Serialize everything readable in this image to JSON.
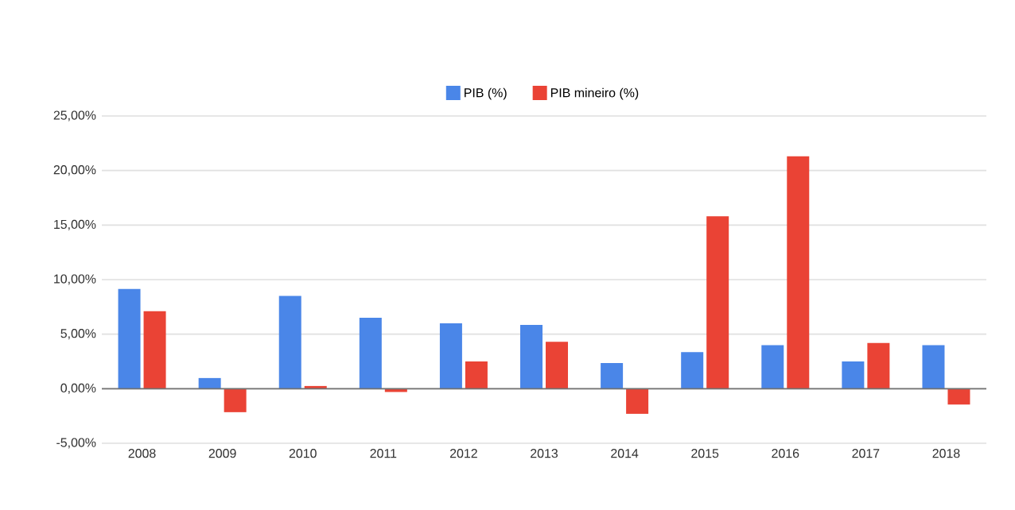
{
  "chart_data": {
    "type": "bar",
    "categories": [
      "2008",
      "2009",
      "2010",
      "2011",
      "2012",
      "2013",
      "2014",
      "2015",
      "2016",
      "2017",
      "2018"
    ],
    "series": [
      {
        "name": "PIB (%)",
        "color": "#4a86e8",
        "values": [
          9.15,
          0.98,
          8.5,
          6.5,
          6.0,
          5.85,
          2.35,
          3.35,
          4.0,
          2.5,
          4.0
        ]
      },
      {
        "name": "PIB mineiro (%)",
        "color": "#ea4335",
        "values": [
          7.1,
          -2.15,
          0.25,
          -0.3,
          2.5,
          4.3,
          -2.3,
          15.8,
          21.3,
          4.2,
          -1.45
        ]
      }
    ],
    "ylim": [
      -5,
      25
    ],
    "yticks": [
      {
        "value": -5,
        "label": "-5,00%"
      },
      {
        "value": 0,
        "label": "0,00%"
      },
      {
        "value": 5,
        "label": "5,00%"
      },
      {
        "value": 10,
        "label": "10,00%"
      },
      {
        "value": 15,
        "label": "15,00%"
      },
      {
        "value": 20,
        "label": "20,00%"
      },
      {
        "value": 25,
        "label": "25,00%"
      }
    ],
    "grid": "y",
    "legend": "top"
  }
}
